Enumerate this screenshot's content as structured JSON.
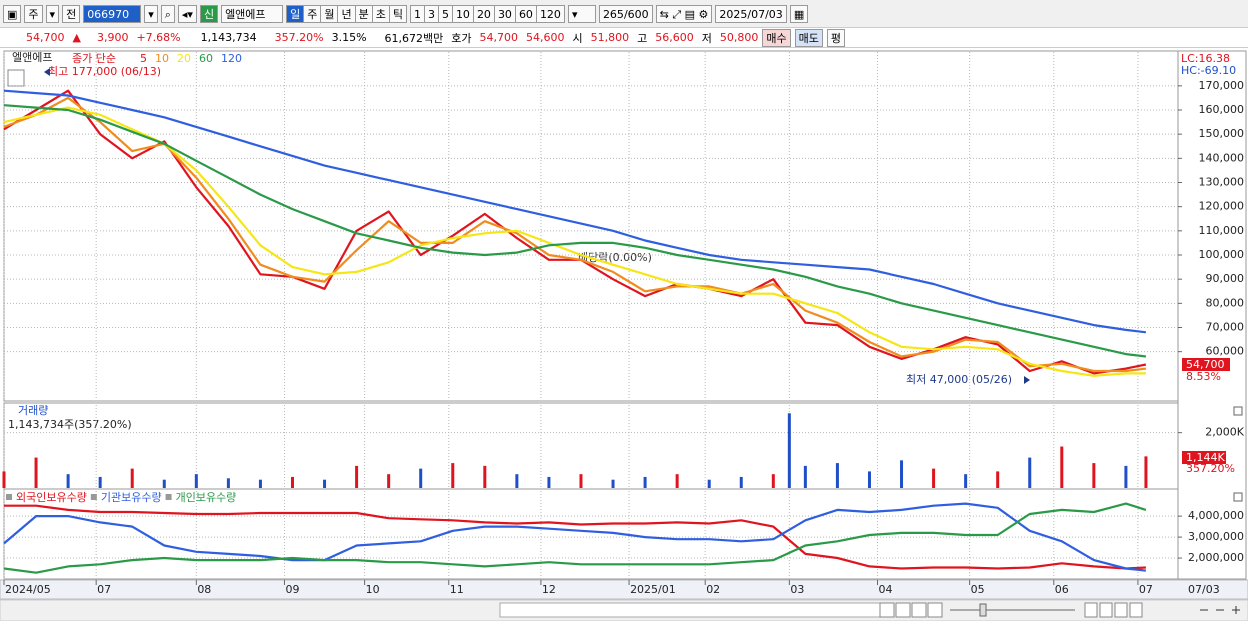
{
  "toolbar": {
    "market": "주",
    "prev": "전",
    "code": "066970",
    "new_badge": "신",
    "name": "엘앤에프",
    "periods": [
      "일",
      "주",
      "월",
      "년",
      "분",
      "초",
      "틱"
    ],
    "intervals": [
      "1",
      "3",
      "5",
      "10",
      "20",
      "30",
      "60",
      "120"
    ],
    "count": "265",
    "max": "/600",
    "date": "2025/07/03"
  },
  "quote": {
    "price": "54,700",
    "arrow": "▲",
    "change": "3,900",
    "rate": "+7.68%",
    "volume": "1,143,734",
    "volume_ratio": "357.20%",
    "turnover": "3.15%",
    "amount": "61,672백만",
    "ask_label": "호가",
    "ask": "54,700",
    "bid": "54,600",
    "open_label": "시",
    "open": "51,800",
    "high_label": "고",
    "high": "56,600",
    "low_label": "저",
    "low": "50,800",
    "buy": "매수",
    "sell": "매도",
    "avg": "평"
  },
  "chart_data": [
    {
      "type": "line",
      "title": "엘앤에프",
      "legend_label": "종가 단순",
      "grid": true,
      "annotations": {
        "high": "최고 177,000 (06/13)",
        "low": "최저 47,000 (05/26)",
        "dividend": "배당락(0.00%)",
        "lc": "LC:16.38",
        "hc": "HC:-69.10",
        "last": "54,700",
        "change": "8.53%"
      },
      "last_date": "07/03",
      "xlim": [
        0,
        293
      ],
      "ylim": [
        40000,
        184000
      ],
      "xticks": [
        {
          "value": 0,
          "label": "2024/05"
        },
        {
          "value": 23,
          "label": "07"
        },
        {
          "value": 48,
          "label": "08"
        },
        {
          "value": 70,
          "label": "09"
        },
        {
          "value": 90,
          "label": "10"
        },
        {
          "value": 111,
          "label": "11"
        },
        {
          "value": 134,
          "label": "12"
        },
        {
          "value": 156,
          "label": "2025/01"
        },
        {
          "value": 175,
          "label": "02"
        },
        {
          "value": 196,
          "label": "03"
        },
        {
          "value": 218,
          "label": "04"
        },
        {
          "value": 241,
          "label": "05"
        },
        {
          "value": 262,
          "label": "06"
        },
        {
          "value": 283,
          "label": "07"
        }
      ],
      "yticks": [
        {
          "value": 60000,
          "label": "60,000"
        },
        {
          "value": 70000,
          "label": "70,000"
        },
        {
          "value": 80000,
          "label": "80,000"
        },
        {
          "value": 90000,
          "label": "90,000"
        },
        {
          "value": 100000,
          "label": "100,000"
        },
        {
          "value": 110000,
          "label": "110,000"
        },
        {
          "value": 120000,
          "label": "120,000"
        },
        {
          "value": 130000,
          "label": "130,000"
        },
        {
          "value": 140000,
          "label": "140,000"
        },
        {
          "value": 150000,
          "label": "150,000"
        },
        {
          "value": 160000,
          "label": "160,000"
        },
        {
          "value": 170000,
          "label": "170,000"
        }
      ],
      "x": [
        0,
        8,
        16,
        24,
        32,
        40,
        48,
        56,
        64,
        72,
        80,
        88,
        96,
        104,
        112,
        120,
        128,
        136,
        144,
        152,
        160,
        168,
        176,
        184,
        192,
        200,
        208,
        216,
        224,
        232,
        240,
        248,
        256,
        264,
        272,
        280,
        285
      ],
      "series": [
        {
          "name": "5",
          "color": "#e0141e",
          "values": [
            152000,
            160000,
            168000,
            150000,
            140000,
            147000,
            128000,
            112000,
            92000,
            91000,
            86000,
            110000,
            118000,
            100000,
            108000,
            117000,
            107000,
            98000,
            98000,
            90000,
            83000,
            88000,
            86000,
            83000,
            90000,
            72000,
            71000,
            62000,
            57000,
            61000,
            66000,
            63000,
            52000,
            56000,
            51000,
            53000,
            54700
          ]
        },
        {
          "name": "10",
          "color": "#f08c1e",
          "values": [
            153000,
            158000,
            165000,
            155000,
            143000,
            146000,
            132000,
            115000,
            96000,
            91000,
            89000,
            102000,
            114000,
            105000,
            105000,
            114000,
            109000,
            100000,
            98000,
            93000,
            85000,
            87000,
            87000,
            84000,
            88000,
            77000,
            72000,
            64000,
            58000,
            60000,
            65000,
            64000,
            54000,
            55000,
            52000,
            52000,
            53000
          ]
        },
        {
          "name": "20",
          "color": "#f5e614",
          "values": [
            155000,
            158000,
            161000,
            158000,
            152000,
            146000,
            135000,
            120000,
            104000,
            95000,
            92000,
            93000,
            97000,
            104000,
            107000,
            109000,
            110000,
            105000,
            100000,
            96000,
            92000,
            88000,
            86000,
            84000,
            84000,
            80000,
            76000,
            68000,
            62000,
            61000,
            62000,
            61000,
            55000,
            52000,
            50000,
            51000,
            51000
          ]
        },
        {
          "name": "60",
          "color": "#2a9a48",
          "values": [
            162000,
            161000,
            160000,
            156000,
            151000,
            146000,
            139000,
            132000,
            125000,
            119000,
            114000,
            109000,
            106000,
            103000,
            101000,
            100000,
            101000,
            104000,
            105000,
            105000,
            103000,
            100000,
            98000,
            96000,
            94000,
            91000,
            87000,
            84000,
            80000,
            77000,
            74000,
            71000,
            68000,
            65000,
            62000,
            59000,
            58000
          ]
        },
        {
          "name": "120",
          "color": "#2f5fe0",
          "values": [
            168000,
            167000,
            166000,
            163000,
            160000,
            157000,
            153000,
            149000,
            145000,
            141000,
            137000,
            134000,
            131000,
            128000,
            125000,
            122000,
            119000,
            116000,
            113000,
            110000,
            106000,
            103000,
            100000,
            98000,
            97000,
            96000,
            95000,
            94000,
            91000,
            88000,
            84000,
            80000,
            77000,
            74000,
            71000,
            69000,
            68000
          ]
        }
      ]
    },
    {
      "type": "bar",
      "title": "거래량",
      "subtitle": "1,143,734주(357.20%)",
      "last_label": "1,144K",
      "change": "357.20%",
      "grid": true,
      "xlim": [
        0,
        293
      ],
      "ylim": [
        0,
        3000000
      ],
      "yticks": [
        {
          "value": 2000000,
          "label": "2,000K"
        }
      ],
      "x": [
        0,
        8,
        16,
        24,
        32,
        40,
        48,
        56,
        64,
        72,
        80,
        88,
        96,
        104,
        112,
        120,
        128,
        136,
        144,
        152,
        160,
        168,
        176,
        184,
        192,
        196,
        200,
        208,
        216,
        224,
        232,
        240,
        248,
        256,
        264,
        272,
        280,
        285
      ],
      "values": [
        600000,
        1100000,
        500000,
        400000,
        700000,
        300000,
        500000,
        350000,
        300000,
        400000,
        300000,
        800000,
        500000,
        700000,
        900000,
        800000,
        500000,
        400000,
        500000,
        300000,
        400000,
        500000,
        300000,
        400000,
        500000,
        2700000,
        800000,
        900000,
        600000,
        1000000,
        700000,
        500000,
        600000,
        1100000,
        1500000,
        900000,
        800000,
        1143734
      ],
      "colors": [
        "#e0141e",
        "#e0141e",
        "#1f4fc8",
        "#1f4fc8",
        "#e0141e",
        "#1f4fc8",
        "#1f4fc8",
        "#1f4fc8",
        "#1f4fc8",
        "#e0141e",
        "#1f4fc8",
        "#e0141e",
        "#e0141e",
        "#1f4fc8",
        "#e0141e",
        "#e0141e",
        "#1f4fc8",
        "#1f4fc8",
        "#e0141e",
        "#1f4fc8",
        "#1f4fc8",
        "#e0141e",
        "#1f4fc8",
        "#1f4fc8",
        "#e0141e",
        "#1f4fc8",
        "#1f4fc8",
        "#1f4fc8",
        "#1f4fc8",
        "#1f4fc8",
        "#e0141e",
        "#1f4fc8",
        "#e0141e",
        "#1f4fc8",
        "#e0141e",
        "#e0141e",
        "#1f4fc8",
        "#e0141e"
      ]
    },
    {
      "type": "line",
      "grid": true,
      "xlim": [
        0,
        293
      ],
      "ylim": [
        1000000,
        5200000
      ],
      "yticks": [
        {
          "value": 2000000,
          "label": "2,000,000"
        },
        {
          "value": 3000000,
          "label": "3,000,000"
        },
        {
          "value": 4000000,
          "label": "4,000,000"
        }
      ],
      "x": [
        0,
        8,
        16,
        24,
        32,
        40,
        48,
        56,
        64,
        72,
        80,
        88,
        96,
        104,
        112,
        120,
        128,
        136,
        144,
        152,
        160,
        168,
        176,
        184,
        192,
        200,
        208,
        216,
        224,
        232,
        240,
        248,
        256,
        264,
        272,
        280,
        285
      ],
      "series": [
        {
          "name": "외국인보유수량",
          "color": "#e0141e",
          "values": [
            4500000,
            4500000,
            4300000,
            4200000,
            4200000,
            4150000,
            4100000,
            4100000,
            4150000,
            4150000,
            4150000,
            4150000,
            3900000,
            3850000,
            3800000,
            3700000,
            3650000,
            3700000,
            3600000,
            3650000,
            3650000,
            3700000,
            3650000,
            3800000,
            3500000,
            2200000,
            2000000,
            1600000,
            1500000,
            1550000,
            1550000,
            1500000,
            1550000,
            1750000,
            1600000,
            1500000,
            1550000
          ]
        },
        {
          "name": "기관보유수량",
          "color": "#2f5fe0",
          "values": [
            2700000,
            4000000,
            4000000,
            3700000,
            3500000,
            2600000,
            2300000,
            2200000,
            2100000,
            1900000,
            1900000,
            2600000,
            2700000,
            2800000,
            3300000,
            3500000,
            3500000,
            3400000,
            3300000,
            3200000,
            3000000,
            2900000,
            2900000,
            2800000,
            2900000,
            3800000,
            4300000,
            4200000,
            4300000,
            4500000,
            4600000,
            4400000,
            3300000,
            2800000,
            1900000,
            1500000,
            1400000
          ]
        },
        {
          "name": "개인보유수량",
          "color": "#2a9a48",
          "values": [
            1500000,
            1300000,
            1600000,
            1700000,
            1900000,
            2000000,
            1900000,
            1900000,
            1900000,
            2000000,
            1900000,
            1900000,
            1800000,
            1800000,
            1700000,
            1600000,
            1700000,
            1800000,
            1700000,
            1700000,
            1700000,
            1700000,
            1700000,
            1800000,
            1900000,
            2600000,
            2800000,
            3100000,
            3200000,
            3200000,
            3100000,
            3100000,
            4100000,
            4300000,
            4200000,
            4600000,
            4300000
          ]
        }
      ]
    }
  ]
}
